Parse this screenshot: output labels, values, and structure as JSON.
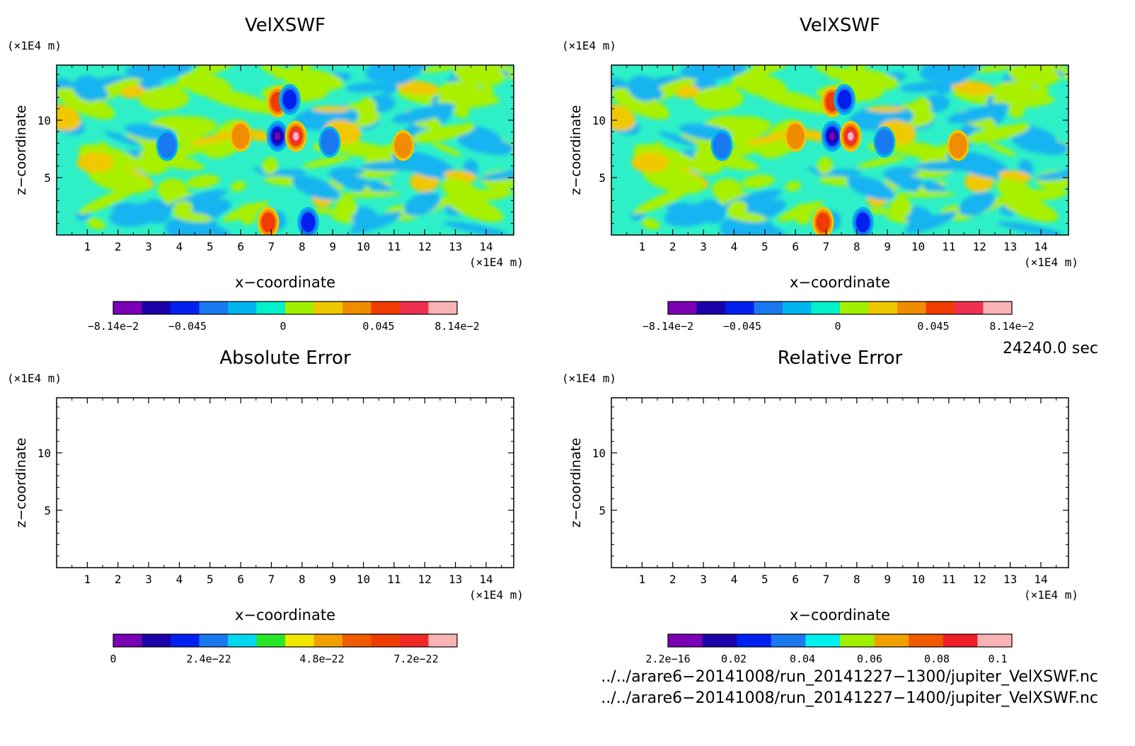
{
  "panels": [
    {
      "id": "p1",
      "title": "VelXSWF",
      "x_unit": "(×1E4 m)",
      "y_unit": "(×1E4 m)",
      "xlabel": "x−coordinate",
      "ylabel": "z−coordinate",
      "x_ticks": [
        "1",
        "2",
        "3",
        "4",
        "5",
        "6",
        "7",
        "8",
        "9",
        "10",
        "11",
        "12",
        "13",
        "14"
      ],
      "y_ticks": [
        "5",
        "10"
      ],
      "filled": true,
      "colorbar": {
        "colors": [
          "#7a00b4",
          "#1a00a8",
          "#0020f0",
          "#1a78f0",
          "#00b4f0",
          "#00f0c8",
          "#a0f000",
          "#f0c800",
          "#f08c00",
          "#f03c00",
          "#f03050",
          "#f8b4b4"
        ],
        "labels": [
          "−8.14e−2",
          "−0.045",
          "0",
          "0.045",
          "8.14e−2"
        ]
      }
    },
    {
      "id": "p2",
      "title": "VelXSWF",
      "x_unit": "(×1E4 m)",
      "y_unit": "(×1E4 m)",
      "xlabel": "x−coordinate",
      "ylabel": "z−coordinate",
      "x_ticks": [
        "1",
        "2",
        "3",
        "4",
        "5",
        "6",
        "7",
        "8",
        "9",
        "10",
        "11",
        "12",
        "13",
        "14"
      ],
      "y_ticks": [
        "5",
        "10"
      ],
      "filled": true,
      "colorbar": {
        "colors": [
          "#7a00b4",
          "#1a00a8",
          "#0020f0",
          "#1a78f0",
          "#00b4f0",
          "#00f0c8",
          "#a0f000",
          "#f0c800",
          "#f08c00",
          "#f03c00",
          "#f03050",
          "#f8b4b4"
        ],
        "labels": [
          "−8.14e−2",
          "−0.045",
          "0",
          "0.045",
          "8.14e−2"
        ]
      }
    },
    {
      "id": "p3",
      "title": "Absolute Error",
      "x_unit": "(×1E4 m)",
      "y_unit": "(×1E4 m)",
      "xlabel": "x−coordinate",
      "ylabel": "z−coordinate",
      "x_ticks": [
        "1",
        "2",
        "3",
        "4",
        "5",
        "6",
        "7",
        "8",
        "9",
        "10",
        "11",
        "12",
        "13",
        "14"
      ],
      "y_ticks": [
        "5",
        "10"
      ],
      "filled": false,
      "colorbar": {
        "colors": [
          "#7a00b4",
          "#1a00a8",
          "#0020f0",
          "#1a78f0",
          "#00d8f0",
          "#28e628",
          "#f0e600",
          "#f0a000",
          "#f05a00",
          "#f03c00",
          "#f02828",
          "#f8b4b4"
        ],
        "labels": [
          "0",
          "2.4e−22",
          "4.8e−22",
          "7.2e−22"
        ]
      }
    },
    {
      "id": "p4",
      "title": "Relative Error",
      "x_unit": "(×1E4 m)",
      "y_unit": "(×1E4 m)",
      "xlabel": "x−coordinate",
      "ylabel": "z−coordinate",
      "x_ticks": [
        "1",
        "2",
        "3",
        "4",
        "5",
        "6",
        "7",
        "8",
        "9",
        "10",
        "11",
        "12",
        "13",
        "14"
      ],
      "y_ticks": [
        "5",
        "10"
      ],
      "filled": false,
      "colorbar": {
        "colors": [
          "#7a00b4",
          "#1a00a8",
          "#0020f0",
          "#1a78f0",
          "#00f0f0",
          "#a0f000",
          "#f0a000",
          "#f05a00",
          "#f01e28",
          "#f8b4b4"
        ],
        "labels": [
          "2.2e−16",
          "0.02",
          "0.04",
          "0.06",
          "0.08",
          "0.1"
        ]
      }
    }
  ],
  "timestamp": "24240.0 sec",
  "files": [
    "../../arare6−20141008/run_20141227−1300/jupiter_VelXSWF.nc",
    "../../arare6−20141008/run_20141227−1400/jupiter_VelXSWF.nc"
  ],
  "chart_data": [
    {
      "type": "heatmap",
      "title": "VelXSWF",
      "xlabel": "x−coordinate",
      "ylabel": "z−coordinate",
      "x_unit": "×1E4 m",
      "y_unit": "×1E4 m",
      "xlim": [
        0,
        14.9
      ],
      "ylim": [
        0,
        14.8
      ],
      "colorbar_range": [
        -0.0814,
        0.0814
      ],
      "colorbar_ticks": [
        -0.0814,
        -0.045,
        0,
        0.045,
        0.0814
      ],
      "features": [
        {
          "x": 7.2,
          "z": 8.6,
          "value": -0.075
        },
        {
          "x": 7.8,
          "z": 8.6,
          "value": 0.075
        },
        {
          "x": 6.9,
          "z": 1.1,
          "value": 0.06
        },
        {
          "x": 8.2,
          "z": 1.1,
          "value": -0.06
        },
        {
          "x": 7.2,
          "z": 11.6,
          "value": 0.05
        },
        {
          "x": 7.6,
          "z": 11.8,
          "value": -0.05
        },
        {
          "x": 8.9,
          "z": 8.1,
          "value": -0.04
        },
        {
          "x": 6.0,
          "z": 8.6,
          "value": 0.04
        },
        {
          "x": 3.6,
          "z": 7.8,
          "value": -0.04
        },
        {
          "x": 11.3,
          "z": 7.8,
          "value": 0.04
        }
      ]
    },
    {
      "type": "heatmap",
      "title": "VelXSWF",
      "xlabel": "x−coordinate",
      "ylabel": "z−coordinate",
      "x_unit": "×1E4 m",
      "y_unit": "×1E4 m",
      "xlim": [
        0,
        14.9
      ],
      "ylim": [
        0,
        14.8
      ],
      "colorbar_range": [
        -0.0814,
        0.0814
      ],
      "colorbar_ticks": [
        -0.0814,
        -0.045,
        0,
        0.045,
        0.0814
      ],
      "features": [
        {
          "x": 7.2,
          "z": 8.6,
          "value": -0.075
        },
        {
          "x": 7.8,
          "z": 8.6,
          "value": 0.075
        },
        {
          "x": 6.9,
          "z": 1.1,
          "value": 0.06
        },
        {
          "x": 8.2,
          "z": 1.1,
          "value": -0.06
        },
        {
          "x": 7.2,
          "z": 11.6,
          "value": 0.05
        },
        {
          "x": 7.6,
          "z": 11.8,
          "value": -0.05
        },
        {
          "x": 8.9,
          "z": 8.1,
          "value": -0.04
        },
        {
          "x": 6.0,
          "z": 8.6,
          "value": 0.04
        },
        {
          "x": 3.6,
          "z": 7.8,
          "value": -0.04
        },
        {
          "x": 11.3,
          "z": 7.8,
          "value": 0.04
        }
      ]
    },
    {
      "type": "heatmap",
      "title": "Absolute Error",
      "xlabel": "x−coordinate",
      "ylabel": "z−coordinate",
      "x_unit": "×1E4 m",
      "y_unit": "×1E4 m",
      "xlim": [
        0,
        14.9
      ],
      "ylim": [
        0,
        14.8
      ],
      "colorbar_range": [
        0,
        8.2e-22
      ],
      "colorbar_ticks": [
        0,
        2.4e-22,
        4.8e-22,
        7.2e-22
      ],
      "features": []
    },
    {
      "type": "heatmap",
      "title": "Relative Error",
      "xlabel": "x−coordinate",
      "ylabel": "z−coordinate",
      "x_unit": "×1E4 m",
      "y_unit": "×1E4 m",
      "xlim": [
        0,
        14.9
      ],
      "ylim": [
        0,
        14.8
      ],
      "colorbar_range": [
        2.2e-16,
        0.1
      ],
      "colorbar_ticks": [
        2.2e-16,
        0.02,
        0.04,
        0.06,
        0.08,
        0.1
      ],
      "features": []
    }
  ]
}
